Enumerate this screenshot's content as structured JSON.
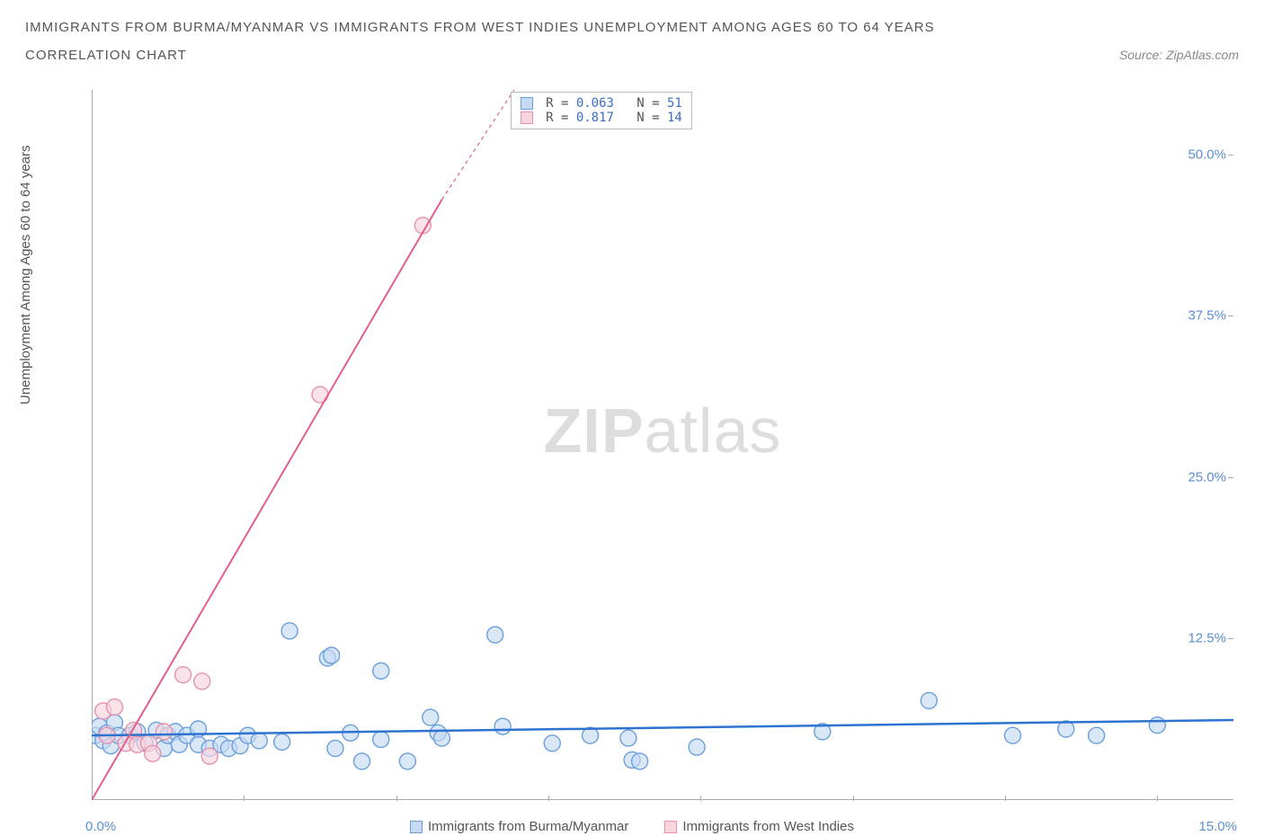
{
  "title": "IMMIGRANTS FROM BURMA/MYANMAR VS IMMIGRANTS FROM WEST INDIES UNEMPLOYMENT AMONG AGES 60 TO 64 YEARS",
  "subtitle": "CORRELATION CHART",
  "source": "Source: ZipAtlas.com",
  "y_axis_label": "Unemployment Among Ages 60 to 64 years",
  "x_min_label": "0.0%",
  "x_max_label": "15.0%",
  "chart": {
    "type": "scatter",
    "xlim": [
      0,
      15
    ],
    "ylim": [
      0,
      55
    ],
    "y_ticks": [
      12.5,
      25.0,
      37.5,
      50.0
    ],
    "y_tick_labels": [
      "12.5%",
      "25.0%",
      "37.5%",
      "50.0%"
    ],
    "x_tick_positions": [
      2,
      4,
      6,
      8,
      10,
      12,
      14
    ],
    "background_color": "#ffffff",
    "axis_color": "#aaaaaa",
    "tick_label_color": "#5b8fd6"
  },
  "series": [
    {
      "name": "Immigrants from Burma/Myanmar",
      "color_fill": "#c6daf3",
      "color_stroke": "#6a9fe0",
      "marker_radius": 9,
      "fill_opacity": 0.65,
      "trend": {
        "stroke": "#2f73d0",
        "width": 2.5,
        "x1": 0,
        "y1": 5.0,
        "x2": 15,
        "y2": 6.2
      },
      "points": [
        [
          0.05,
          5.0
        ],
        [
          0.1,
          5.7
        ],
        [
          0.15,
          4.6
        ],
        [
          0.2,
          5.2
        ],
        [
          0.25,
          4.2
        ],
        [
          0.3,
          6.0
        ],
        [
          0.35,
          5.0
        ],
        [
          0.5,
          5.0
        ],
        [
          0.6,
          5.3
        ],
        [
          0.7,
          4.4
        ],
        [
          0.85,
          5.4
        ],
        [
          0.95,
          4.0
        ],
        [
          1.0,
          5.0
        ],
        [
          1.1,
          5.3
        ],
        [
          1.15,
          4.3
        ],
        [
          1.25,
          5.0
        ],
        [
          1.4,
          4.3
        ],
        [
          1.4,
          5.5
        ],
        [
          1.55,
          4.0
        ],
        [
          1.7,
          4.3
        ],
        [
          1.8,
          4.0
        ],
        [
          1.95,
          4.2
        ],
        [
          2.05,
          5.0
        ],
        [
          2.2,
          4.6
        ],
        [
          2.5,
          4.5
        ],
        [
          2.6,
          13.1
        ],
        [
          3.1,
          11.0
        ],
        [
          3.15,
          11.2
        ],
        [
          3.2,
          4.0
        ],
        [
          3.4,
          5.2
        ],
        [
          3.55,
          3.0
        ],
        [
          3.8,
          4.7
        ],
        [
          3.8,
          10.0
        ],
        [
          4.15,
          3.0
        ],
        [
          4.45,
          6.4
        ],
        [
          4.55,
          5.2
        ],
        [
          4.6,
          4.8
        ],
        [
          5.3,
          12.8
        ],
        [
          5.4,
          5.7
        ],
        [
          6.05,
          4.4
        ],
        [
          6.55,
          5.0
        ],
        [
          7.05,
          4.8
        ],
        [
          7.1,
          3.1
        ],
        [
          7.2,
          3.0
        ],
        [
          7.95,
          4.1
        ],
        [
          9.6,
          5.3
        ],
        [
          11.0,
          7.7
        ],
        [
          12.1,
          5.0
        ],
        [
          12.8,
          5.5
        ],
        [
          13.2,
          5.0
        ],
        [
          14.0,
          5.8
        ]
      ]
    },
    {
      "name": "Immigrants from West Indies",
      "color_fill": "#f7d5de",
      "color_stroke": "#e991aa",
      "marker_radius": 9,
      "fill_opacity": 0.65,
      "trend": {
        "stroke": "#e26088",
        "width": 2,
        "x1": 0,
        "y1": 0,
        "x2": 4.6,
        "y2": 46.5
      },
      "trend_dashed_ext": {
        "x1": 4.6,
        "y1": 46.5,
        "x2": 5.55,
        "y2": 55
      },
      "points": [
        [
          0.15,
          6.9
        ],
        [
          0.2,
          5.0
        ],
        [
          0.3,
          7.2
        ],
        [
          0.45,
          4.4
        ],
        [
          0.55,
          5.4
        ],
        [
          0.6,
          4.3
        ],
        [
          0.75,
          4.4
        ],
        [
          0.8,
          3.6
        ],
        [
          0.95,
          5.3
        ],
        [
          1.2,
          9.7
        ],
        [
          1.45,
          9.2
        ],
        [
          1.55,
          3.4
        ],
        [
          3.0,
          31.4
        ],
        [
          4.35,
          44.5
        ]
      ]
    }
  ],
  "stats_box": {
    "rows": [
      {
        "swatch_fill": "#c6daf3",
        "swatch_stroke": "#6a9fe0",
        "r": "0.063",
        "n": "51"
      },
      {
        "swatch_fill": "#f7d5de",
        "swatch_stroke": "#e991aa",
        "r": "0.817",
        "n": "14"
      }
    ]
  },
  "legend": {
    "items": [
      {
        "label": "Immigrants from Burma/Myanmar",
        "fill": "#c6daf3",
        "stroke": "#6a9fe0"
      },
      {
        "label": "Immigrants from West Indies",
        "fill": "#f7d5de",
        "stroke": "#e991aa"
      }
    ]
  },
  "watermark": {
    "part1": "ZIP",
    "part2": "atlas"
  }
}
